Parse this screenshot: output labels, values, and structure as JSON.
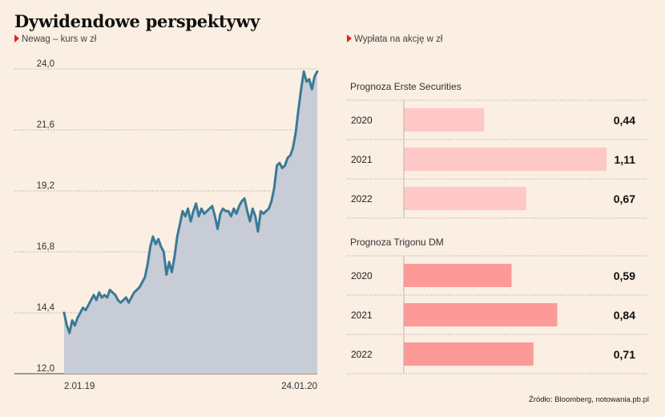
{
  "title": "Dywidendowe perspektywy",
  "source": "Źródło: Bloomberg, notowania.pb.pl",
  "chart_data": [
    {
      "type": "area",
      "subtitle": "Newag – kurs w zł",
      "ylim": [
        12.0,
        24.0
      ],
      "yticks": [
        "12,0",
        "14,4",
        "16,8",
        "19,2",
        "21,6",
        "24,0"
      ],
      "ytick_values": [
        12.0,
        14.4,
        16.8,
        19.2,
        21.6,
        24.0
      ],
      "xtick_labels": [
        "2.01.19",
        "24.01.20"
      ],
      "grid": true,
      "colors": {
        "line": "#3a7a96",
        "area": "#c7ccd6"
      },
      "series": [
        {
          "values": [
            14.4,
            13.9,
            13.6,
            14.1,
            13.9,
            14.2,
            14.4,
            14.6,
            14.5,
            14.7,
            14.9,
            15.1,
            14.9,
            15.2,
            15.0,
            15.1,
            15.0,
            15.3,
            15.2,
            15.1,
            14.9,
            14.8,
            14.9,
            15.0,
            14.8,
            15.0,
            15.2,
            15.3,
            15.4,
            15.6,
            15.8,
            16.3,
            17.0,
            17.4,
            17.1,
            17.3,
            17.0,
            16.8,
            15.9,
            16.4,
            16.0,
            16.6,
            17.4,
            17.9,
            18.4,
            18.2,
            18.5,
            18.0,
            18.4,
            18.7,
            18.2,
            18.5,
            18.3,
            18.4,
            18.5,
            18.6,
            18.2,
            17.7,
            18.3,
            18.5,
            18.4,
            18.4,
            18.2,
            18.5,
            18.3,
            18.6,
            18.8,
            18.9,
            18.4,
            18.0,
            18.5,
            18.2,
            17.6,
            18.4,
            18.3,
            18.4,
            18.5,
            18.8,
            19.3,
            20.2,
            20.3,
            20.1,
            20.2,
            20.5,
            20.6,
            20.9,
            21.5,
            22.4,
            23.2,
            23.9,
            23.5,
            23.6,
            23.2,
            23.7,
            23.9
          ]
        }
      ]
    },
    {
      "type": "bar",
      "subtitle": "Wypłata na akcję w zł",
      "xlim": [
        0,
        1.11
      ],
      "groups": [
        {
          "label": "Prognoza Erste Securities",
          "color": "#fdc8c6",
          "categories": [
            "2020",
            "2021",
            "2022"
          ],
          "values": [
            0.44,
            1.11,
            0.67
          ],
          "value_labels": [
            "0,44",
            "1,11",
            "0,67"
          ]
        },
        {
          "label": "Prognoza Trigonu DM",
          "color": "#fc9a98",
          "categories": [
            "2020",
            "2021",
            "2022"
          ],
          "values": [
            0.59,
            0.84,
            0.71
          ],
          "value_labels": [
            "0,59",
            "0,84",
            "0,71"
          ]
        }
      ]
    }
  ]
}
